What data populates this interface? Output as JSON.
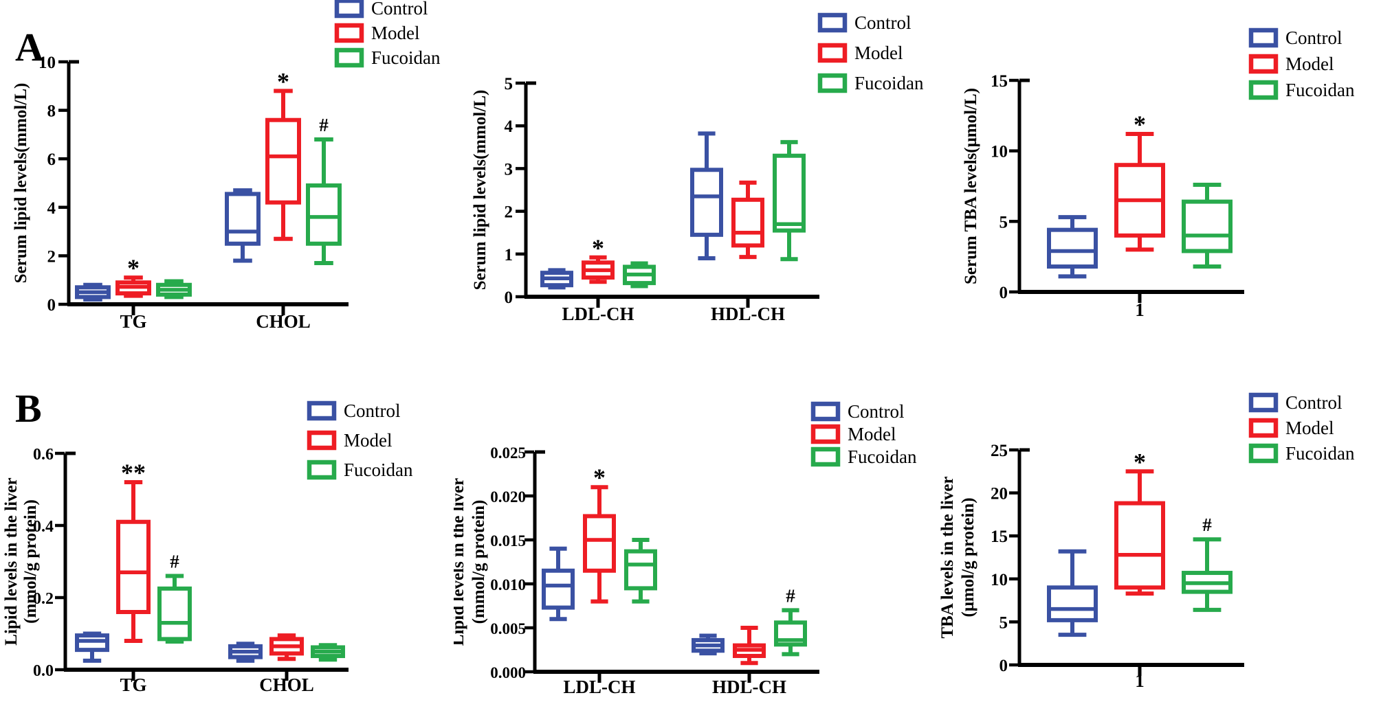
{
  "figure": {
    "letter_a": "A",
    "letter_b": "B",
    "background": "#FFFFFF",
    "colors": {
      "control": "#3A51A3",
      "model": "#EE1D24",
      "fucoidan": "#27AA4C",
      "axis": "#000000"
    },
    "legend": [
      "Control",
      "Model",
      "Fucoidan"
    ]
  },
  "chart_data": [
    {
      "id": "a1",
      "type": "box",
      "ylabel_lines": [
        "Serum lipid levels(mmol/L)"
      ],
      "ylim": [
        0,
        10
      ],
      "yticks": [
        0,
        2,
        4,
        6,
        8,
        10
      ],
      "ytick_labels": [
        "0",
        "2",
        "4",
        "6",
        "8",
        "10"
      ],
      "categories": [
        "TG",
        "CHOL"
      ],
      "legend_position": "top-right",
      "series": [
        {
          "name": "Control",
          "color": "control",
          "boxes": [
            {
              "lo": 0.2,
              "q1": 0.3,
              "med": 0.5,
              "q3": 0.7,
              "hi": 0.8,
              "sig": ""
            },
            {
              "lo": 1.8,
              "q1": 2.5,
              "med": 3.0,
              "q3": 4.55,
              "hi": 4.7,
              "sig": ""
            }
          ]
        },
        {
          "name": "Model",
          "color": "model",
          "boxes": [
            {
              "lo": 0.35,
              "q1": 0.45,
              "med": 0.72,
              "q3": 0.9,
              "hi": 1.1,
              "sig": "*"
            },
            {
              "lo": 2.7,
              "q1": 4.2,
              "med": 6.1,
              "q3": 7.6,
              "hi": 8.8,
              "sig": "*"
            }
          ]
        },
        {
          "name": "Fucoidan",
          "color": "fucoidan",
          "boxes": [
            {
              "lo": 0.3,
              "q1": 0.4,
              "med": 0.6,
              "q3": 0.8,
              "hi": 0.95,
              "sig": ""
            },
            {
              "lo": 1.7,
              "q1": 2.5,
              "med": 3.6,
              "q3": 4.9,
              "hi": 6.8,
              "sig": "#"
            }
          ]
        }
      ]
    },
    {
      "id": "a2",
      "type": "box",
      "ylabel_lines": [
        "Serum lipid levels(mmol/L)"
      ],
      "ylim": [
        0,
        5
      ],
      "yticks": [
        0,
        1,
        2,
        3,
        4,
        5
      ],
      "ytick_labels": [
        "0",
        "1",
        "2",
        "3",
        "4",
        "5"
      ],
      "categories": [
        "LDL-CH",
        "HDL-CH"
      ],
      "legend_position": "top-right",
      "series": [
        {
          "name": "Control",
          "color": "control",
          "boxes": [
            {
              "lo": 0.22,
              "q1": 0.27,
              "med": 0.43,
              "q3": 0.56,
              "hi": 0.62,
              "sig": ""
            },
            {
              "lo": 0.9,
              "q1": 1.45,
              "med": 2.35,
              "q3": 2.97,
              "hi": 3.82,
              "sig": ""
            }
          ]
        },
        {
          "name": "Model",
          "color": "model",
          "boxes": [
            {
              "lo": 0.35,
              "q1": 0.45,
              "med": 0.62,
              "q3": 0.8,
              "hi": 0.92,
              "sig": "*"
            },
            {
              "lo": 0.93,
              "q1": 1.2,
              "med": 1.5,
              "q3": 2.27,
              "hi": 2.67,
              "sig": ""
            }
          ]
        },
        {
          "name": "Fucoidan",
          "color": "fucoidan",
          "boxes": [
            {
              "lo": 0.25,
              "q1": 0.32,
              "med": 0.52,
              "q3": 0.7,
              "hi": 0.78,
              "sig": ""
            },
            {
              "lo": 0.88,
              "q1": 1.55,
              "med": 1.7,
              "q3": 3.3,
              "hi": 3.62,
              "sig": ""
            }
          ]
        }
      ]
    },
    {
      "id": "a3",
      "type": "box",
      "ylabel_lines": [
        "Serum TBA levels(μmol/L)"
      ],
      "ylim": [
        0,
        15
      ],
      "yticks": [
        0,
        5,
        10,
        15
      ],
      "ytick_labels": [
        "0",
        "5",
        "10",
        "15"
      ],
      "categories": [
        "1"
      ],
      "legend_position": "top-right",
      "series": [
        {
          "name": "Control",
          "color": "control",
          "boxes": [
            {
              "lo": 1.1,
              "q1": 1.8,
              "med": 2.9,
              "q3": 4.4,
              "hi": 5.3,
              "sig": ""
            }
          ]
        },
        {
          "name": "Model",
          "color": "model",
          "boxes": [
            {
              "lo": 3.0,
              "q1": 4.0,
              "med": 6.5,
              "q3": 9.0,
              "hi": 11.2,
              "sig": "*"
            }
          ]
        },
        {
          "name": "Fucoidan",
          "color": "fucoidan",
          "boxes": [
            {
              "lo": 1.8,
              "q1": 2.9,
              "med": 4.0,
              "q3": 6.4,
              "hi": 7.6,
              "sig": ""
            }
          ]
        }
      ]
    },
    {
      "id": "b1",
      "type": "box",
      "ylabel_lines": [
        "Lipid levels in the liver",
        "(mmol/g protein)"
      ],
      "ylim": [
        0,
        0.6
      ],
      "yticks": [
        0,
        0.2,
        0.4,
        0.6
      ],
      "ytick_labels": [
        "0.0",
        "0.2",
        "0.4",
        "0.6"
      ],
      "categories": [
        "TG",
        "CHOL"
      ],
      "legend_position": "top-right",
      "series": [
        {
          "name": "Control",
          "color": "control",
          "boxes": [
            {
              "lo": 0.025,
              "q1": 0.055,
              "med": 0.08,
              "q3": 0.095,
              "hi": 0.1,
              "sig": ""
            },
            {
              "lo": 0.025,
              "q1": 0.035,
              "med": 0.05,
              "q3": 0.065,
              "hi": 0.072,
              "sig": ""
            }
          ]
        },
        {
          "name": "Model",
          "color": "model",
          "boxes": [
            {
              "lo": 0.08,
              "q1": 0.16,
              "med": 0.27,
              "q3": 0.41,
              "hi": 0.52,
              "sig": "**"
            },
            {
              "lo": 0.03,
              "q1": 0.045,
              "med": 0.065,
              "q3": 0.085,
              "hi": 0.095,
              "sig": ""
            }
          ]
        },
        {
          "name": "Fucoidan",
          "color": "fucoidan",
          "boxes": [
            {
              "lo": 0.078,
              "q1": 0.085,
              "med": 0.13,
              "q3": 0.225,
              "hi": 0.26,
              "sig": "#"
            },
            {
              "lo": 0.028,
              "q1": 0.038,
              "med": 0.05,
              "q3": 0.062,
              "hi": 0.068,
              "sig": ""
            }
          ]
        }
      ]
    },
    {
      "id": "b2",
      "type": "box",
      "ylabel_lines": [
        "Lipid levels in the liver",
        "(mmol/g protein)"
      ],
      "ylim": [
        0,
        0.025
      ],
      "yticks": [
        0,
        0.005,
        0.01,
        0.015,
        0.02,
        0.025
      ],
      "ytick_labels": [
        "0.000",
        "0.005",
        "0.010",
        "0.015",
        "0.020",
        "0.025"
      ],
      "categories": [
        "LDL-CH",
        "HDL-CH"
      ],
      "legend_position": "top-right",
      "series": [
        {
          "name": "Control",
          "color": "control",
          "boxes": [
            {
              "lo": 0.006,
              "q1": 0.0073,
              "med": 0.0098,
              "q3": 0.0115,
              "hi": 0.014,
              "sig": ""
            },
            {
              "lo": 0.0021,
              "q1": 0.0024,
              "med": 0.003,
              "q3": 0.0036,
              "hi": 0.0041,
              "sig": ""
            }
          ]
        },
        {
          "name": "Model",
          "color": "model",
          "boxes": [
            {
              "lo": 0.008,
              "q1": 0.0115,
              "med": 0.015,
              "q3": 0.0177,
              "hi": 0.021,
              "sig": "*"
            },
            {
              "lo": 0.001,
              "q1": 0.0018,
              "med": 0.0025,
              "q3": 0.003,
              "hi": 0.005,
              "sig": ""
            }
          ]
        },
        {
          "name": "Fucoidan",
          "color": "fucoidan",
          "boxes": [
            {
              "lo": 0.008,
              "q1": 0.0095,
              "med": 0.0122,
              "q3": 0.0137,
              "hi": 0.015,
              "sig": ""
            },
            {
              "lo": 0.002,
              "q1": 0.0031,
              "med": 0.0036,
              "q3": 0.0056,
              "hi": 0.007,
              "sig": "#"
            }
          ]
        }
      ]
    },
    {
      "id": "b3",
      "type": "box",
      "ylabel_lines": [
        "TBA levels in the liver",
        "(μmol/g protein)"
      ],
      "ylim": [
        0,
        25
      ],
      "yticks": [
        0,
        5,
        10,
        15,
        20,
        25
      ],
      "ytick_labels": [
        "0",
        "5",
        "10",
        "15",
        "20",
        "25"
      ],
      "categories": [
        "1"
      ],
      "legend_position": "top-right",
      "series": [
        {
          "name": "Control",
          "color": "control",
          "boxes": [
            {
              "lo": 3.5,
              "q1": 5.2,
              "med": 6.5,
              "q3": 9.0,
              "hi": 13.2,
              "sig": ""
            }
          ]
        },
        {
          "name": "Model",
          "color": "model",
          "boxes": [
            {
              "lo": 8.3,
              "q1": 9.0,
              "med": 12.8,
              "q3": 18.8,
              "hi": 22.5,
              "sig": "*"
            }
          ]
        },
        {
          "name": "Fucoidan",
          "color": "fucoidan",
          "boxes": [
            {
              "lo": 6.4,
              "q1": 8.5,
              "med": 9.5,
              "q3": 10.7,
              "hi": 14.6,
              "sig": "#"
            }
          ]
        }
      ]
    }
  ]
}
